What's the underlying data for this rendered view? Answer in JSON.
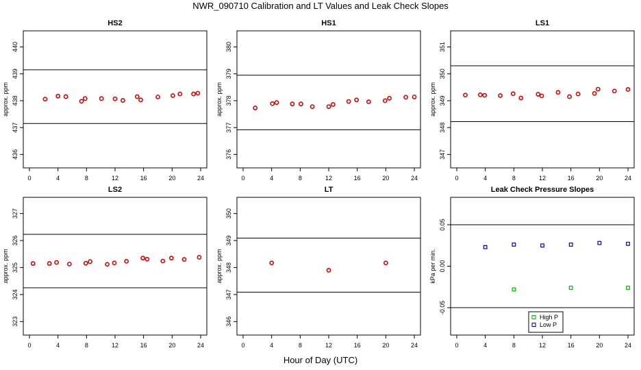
{
  "title": "NWR_090710  Calibration and LT Values and Leak Check Slopes",
  "xlabel": "Hour of Day (UTC)",
  "colors": {
    "calibration_points": "#dd0000",
    "high_p": "#00bb00",
    "low_p": "#0000cc",
    "axis": "#000000"
  },
  "chart_data": [
    {
      "type": "scatter",
      "title": "HS2",
      "ylabel": "approx. ppm",
      "xlim": [
        0,
        24
      ],
      "ylim": [
        435.5,
        440.6
      ],
      "xticks": [
        0,
        4,
        8,
        12,
        16,
        20,
        24
      ],
      "yticks": [
        436,
        437,
        438,
        439,
        440
      ],
      "hlines": [
        439.15,
        437.15
      ],
      "series": [
        {
          "color": "red",
          "x": [
            2.2,
            4.0,
            5.1,
            7.3,
            7.8,
            10.1,
            12.0,
            13.1,
            15.1,
            15.6,
            18.0,
            20.1,
            21.1,
            23.0,
            23.6
          ],
          "y": [
            438.06,
            438.17,
            438.15,
            437.98,
            438.08,
            438.08,
            438.07,
            438.01,
            438.15,
            438.03,
            438.14,
            438.19,
            438.25,
            438.25,
            438.28
          ]
        }
      ]
    },
    {
      "type": "scatter",
      "title": "HS1",
      "ylabel": "approx. ppm",
      "xlim": [
        0,
        24
      ],
      "ylim": [
        375.5,
        380.6
      ],
      "xticks": [
        0,
        4,
        8,
        12,
        16,
        20,
        24
      ],
      "yticks": [
        376,
        377,
        378,
        379,
        380
      ],
      "hlines": [
        378.95,
        376.92
      ],
      "series": [
        {
          "color": "red",
          "x": [
            1.7,
            4.1,
            4.7,
            6.9,
            8.1,
            9.7,
            12.0,
            12.6,
            14.8,
            15.9,
            17.6,
            19.9,
            20.5,
            22.8,
            24.0
          ],
          "y": [
            377.73,
            377.89,
            377.93,
            377.88,
            377.88,
            377.78,
            377.78,
            377.86,
            377.97,
            378.03,
            377.96,
            378.0,
            378.09,
            378.13,
            378.14
          ]
        }
      ]
    },
    {
      "type": "scatter",
      "title": "LS1",
      "ylabel": "approx. ppm",
      "xlim": [
        0,
        24
      ],
      "ylim": [
        346.5,
        351.6
      ],
      "xticks": [
        0,
        4,
        8,
        12,
        16,
        20,
        24
      ],
      "yticks": [
        347,
        348,
        349,
        350,
        351
      ],
      "hlines": [
        350.3,
        348.22
      ],
      "series": [
        {
          "color": "red",
          "x": [
            1.2,
            3.3,
            3.9,
            6.1,
            7.9,
            9.0,
            11.4,
            11.9,
            14.2,
            15.8,
            17.0,
            19.3,
            19.8,
            22.1,
            24.0
          ],
          "y": [
            349.21,
            349.22,
            349.2,
            349.19,
            349.26,
            349.1,
            349.24,
            349.18,
            349.31,
            349.15,
            349.25,
            349.27,
            349.43,
            349.36,
            349.42
          ]
        }
      ]
    },
    {
      "type": "scatter",
      "title": "LS2",
      "ylabel": "approx. ppm",
      "xlim": [
        0,
        24
      ],
      "ylim": [
        322.5,
        327.6
      ],
      "xticks": [
        0,
        4,
        8,
        12,
        16,
        20,
        24
      ],
      "yticks": [
        323,
        324,
        325,
        326,
        327
      ],
      "hlines": [
        326.23,
        324.25
      ],
      "series": [
        {
          "color": "red",
          "x": [
            0.5,
            2.8,
            3.8,
            5.6,
            7.9,
            8.5,
            10.9,
            11.9,
            13.6,
            15.9,
            16.5,
            18.7,
            19.9,
            21.7,
            23.8
          ],
          "y": [
            325.15,
            325.15,
            325.19,
            325.13,
            325.16,
            325.22,
            325.12,
            325.17,
            325.23,
            325.35,
            325.31,
            325.24,
            325.35,
            325.3,
            325.38
          ]
        }
      ]
    },
    {
      "type": "scatter",
      "title": "LT",
      "ylabel": "approx. ppm",
      "xlim": [
        0,
        24
      ],
      "ylim": [
        345.5,
        350.6
      ],
      "xticks": [
        0,
        4,
        8,
        12,
        16,
        20,
        24
      ],
      "yticks": [
        346,
        347,
        348,
        349,
        350
      ],
      "hlines": [
        349.09,
        347.09
      ],
      "series": [
        {
          "color": "red",
          "x": [
            4.0,
            12.0,
            20.0
          ],
          "y": [
            348.17,
            347.9,
            348.17
          ]
        }
      ]
    },
    {
      "type": "scatter",
      "title": "Leak Check Pressure Slopes",
      "ylabel": "kPa per min.",
      "xlim": [
        0,
        24
      ],
      "ylim": [
        -0.083,
        0.083
      ],
      "xticks": [
        0,
        4,
        8,
        12,
        16,
        20,
        24
      ],
      "yticks": [
        -0.05,
        0.0,
        0.05
      ],
      "yticklabels": [
        "-0.05",
        "0.00",
        "0.05"
      ],
      "hlines": [
        0.05,
        -0.05
      ],
      "series": [
        {
          "name": "High P",
          "color": "green",
          "x": [
            8.0,
            16.0,
            24.0
          ],
          "y": [
            -0.028,
            -0.026,
            -0.026
          ]
        },
        {
          "name": "Low P",
          "color": "blue",
          "x": [
            4.0,
            8.0,
            12.0,
            16.0,
            20.0,
            24.0
          ],
          "y": [
            0.023,
            0.026,
            0.025,
            0.026,
            0.028,
            0.027
          ]
        }
      ],
      "legend": {
        "position": "bottom-center",
        "entries": [
          "High P",
          "Low P"
        ]
      }
    }
  ]
}
